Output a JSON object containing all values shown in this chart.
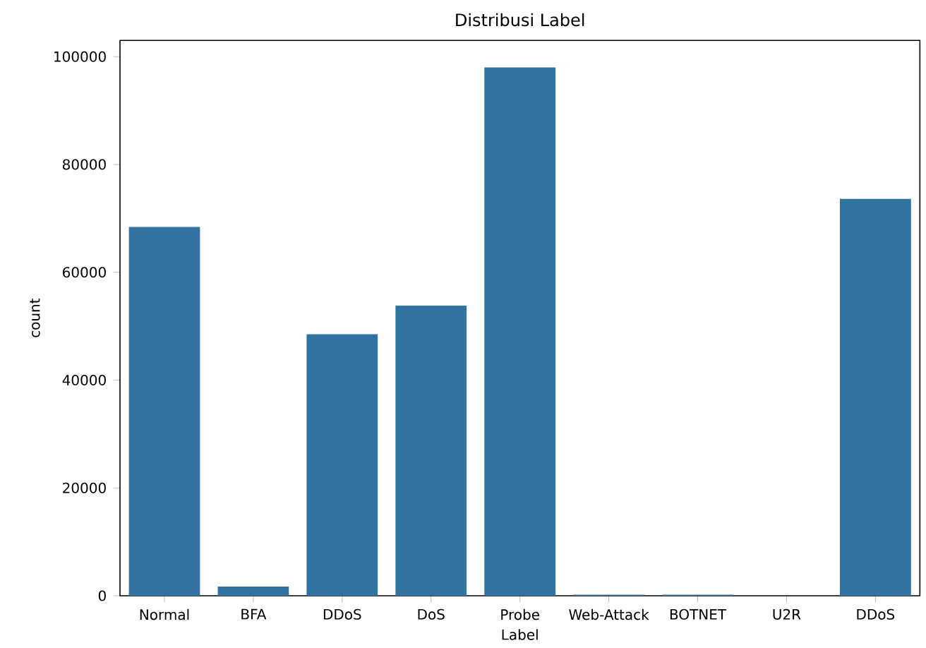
{
  "chart_data": {
    "type": "bar",
    "title": "Distribusi Label",
    "xlabel": "Label",
    "ylabel": "count",
    "categories": [
      "Normal",
      "BFA",
      "DDoS",
      "DoS",
      "Probe",
      "Web-Attack",
      "BOTNET",
      "U2R",
      "DDoS"
    ],
    "values": [
      68400,
      1700,
      48500,
      53800,
      98000,
      200,
      200,
      0,
      73600
    ],
    "color": "#3274a1",
    "ylim": [
      0,
      103000
    ],
    "yticks": [
      0,
      20000,
      40000,
      60000,
      80000,
      100000
    ]
  }
}
